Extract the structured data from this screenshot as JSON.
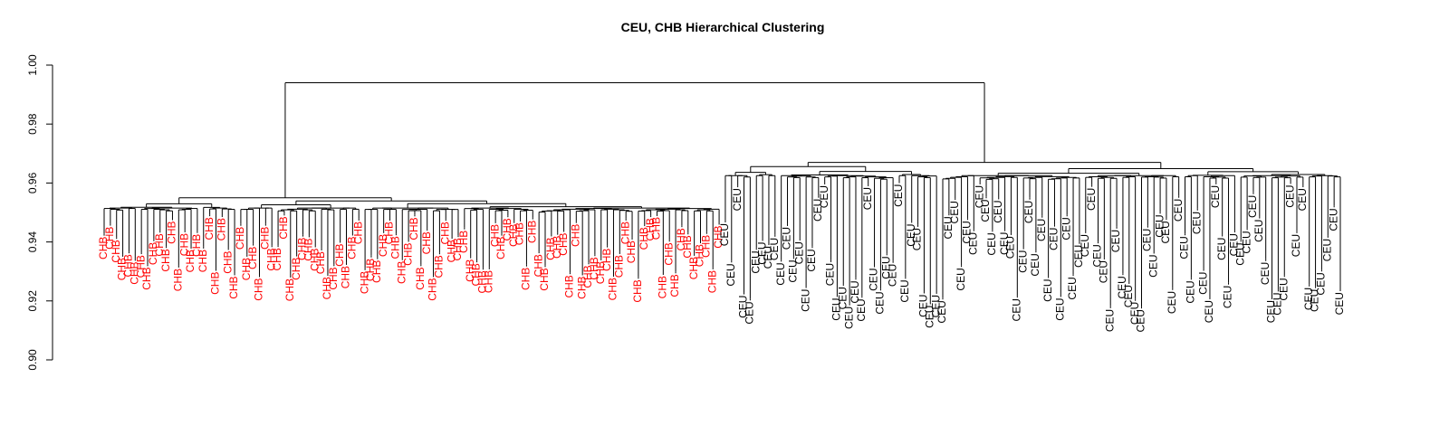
{
  "chart_data": {
    "type": "dendrogram",
    "title": "CEU, CHB Hierarchical Clustering",
    "xlabel": "",
    "ylabel": "",
    "ylim": [
      0.9,
      1.0
    ],
    "yticks": [
      0.9,
      0.92,
      0.94,
      0.96,
      0.98,
      1.0
    ],
    "ytick_labels": [
      "0.90",
      "0.92",
      "0.94",
      "0.96",
      "0.98",
      "1.00"
    ],
    "grid": false,
    "root_height": 0.994,
    "series": [
      {
        "name": "CHB",
        "color": "#ff0000",
        "label": "CHB",
        "count": 100,
        "merge_height": 0.955,
        "leaf_height_range": [
          0.928,
          0.951
        ]
      },
      {
        "name": "CEU",
        "color": "#000000",
        "label": "CEU",
        "count": 100,
        "merge_height": 0.967,
        "leaf_height_range": [
          0.918,
          0.962
        ]
      }
    ]
  }
}
